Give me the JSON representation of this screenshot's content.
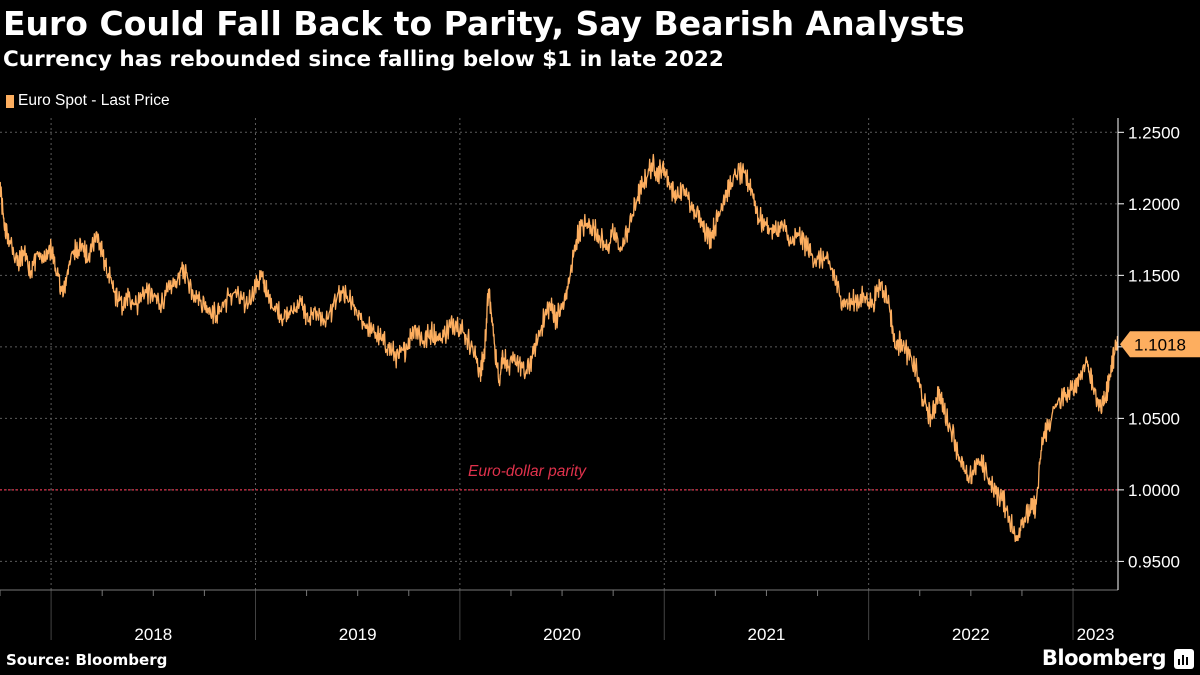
{
  "header": {
    "title": "Euro Could Fall Back to Parity, Say Bearish Analysts",
    "subtitle": "Currency has rebounded since falling below $1 in late 2022"
  },
  "footer": {
    "source": "Source: Bloomberg",
    "brand": "Bloomberg"
  },
  "colors": {
    "background": "#000000",
    "series": "#FDAE5F",
    "parity": "#E0324C",
    "grid": "#5C5C5C",
    "text": "#FFFFFF",
    "tag_text": "#000000"
  },
  "chart_data": {
    "type": "line",
    "title": "Euro Could Fall Back to Parity, Say Bearish Analysts",
    "subtitle": "Currency has rebounded since falling below $1 in late 2022",
    "xlabel": "",
    "ylabel": "",
    "ylim": [
      0.93,
      1.26
    ],
    "xlim": [
      2017.75,
      2023.22
    ],
    "yticks": [
      0.95,
      1.0,
      1.05,
      1.1,
      1.15,
      1.2,
      1.25
    ],
    "ytick_labels": [
      "0.9500",
      "1.0000",
      "1.0500",
      "1.1000",
      "1.1500",
      "1.2000",
      "1.2500"
    ],
    "year_labels": [
      {
        "label": "2018",
        "start": 2018.0
      },
      {
        "label": "2019",
        "start": 2019.0
      },
      {
        "label": "2020",
        "start": 2020.0
      },
      {
        "label": "2021",
        "start": 2021.0
      },
      {
        "label": "2022",
        "start": 2022.0
      },
      {
        "label": "2023",
        "start": 2023.0
      }
    ],
    "legend": [
      "Euro Spot - Last Price"
    ],
    "last_value": {
      "value": 1.1018,
      "label": "1.1018"
    },
    "annotations": [
      {
        "text": "Euro-dollar parity",
        "y": 1.0
      }
    ],
    "grid": true,
    "series": [
      {
        "name": "Euro Spot - Last Price",
        "points": [
          [
            2017.75,
            1.212
          ],
          [
            2017.77,
            1.185
          ],
          [
            2017.8,
            1.172
          ],
          [
            2017.84,
            1.158
          ],
          [
            2017.87,
            1.168
          ],
          [
            2017.9,
            1.152
          ],
          [
            2017.93,
            1.165
          ],
          [
            2017.97,
            1.16
          ],
          [
            2018.0,
            1.17
          ],
          [
            2018.03,
            1.15
          ],
          [
            2018.06,
            1.136
          ],
          [
            2018.09,
            1.16
          ],
          [
            2018.12,
            1.168
          ],
          [
            2018.15,
            1.172
          ],
          [
            2018.18,
            1.16
          ],
          [
            2018.22,
            1.18
          ],
          [
            2018.25,
            1.165
          ],
          [
            2018.28,
            1.15
          ],
          [
            2018.31,
            1.138
          ],
          [
            2018.35,
            1.128
          ],
          [
            2018.38,
            1.135
          ],
          [
            2018.42,
            1.13
          ],
          [
            2018.46,
            1.14
          ],
          [
            2018.5,
            1.135
          ],
          [
            2018.54,
            1.13
          ],
          [
            2018.58,
            1.14
          ],
          [
            2018.62,
            1.148
          ],
          [
            2018.65,
            1.155
          ],
          [
            2018.69,
            1.14
          ],
          [
            2018.73,
            1.132
          ],
          [
            2018.77,
            1.127
          ],
          [
            2018.81,
            1.122
          ],
          [
            2018.85,
            1.132
          ],
          [
            2018.9,
            1.138
          ],
          [
            2018.95,
            1.128
          ],
          [
            2019.0,
            1.142
          ],
          [
            2019.03,
            1.15
          ],
          [
            2019.06,
            1.135
          ],
          [
            2019.1,
            1.127
          ],
          [
            2019.14,
            1.12
          ],
          [
            2019.18,
            1.125
          ],
          [
            2019.22,
            1.132
          ],
          [
            2019.26,
            1.118
          ],
          [
            2019.3,
            1.125
          ],
          [
            2019.34,
            1.117
          ],
          [
            2019.38,
            1.128
          ],
          [
            2019.42,
            1.138
          ],
          [
            2019.46,
            1.132
          ],
          [
            2019.5,
            1.122
          ],
          [
            2019.54,
            1.115
          ],
          [
            2019.58,
            1.11
          ],
          [
            2019.62,
            1.105
          ],
          [
            2019.66,
            1.098
          ],
          [
            2019.7,
            1.092
          ],
          [
            2019.74,
            1.1
          ],
          [
            2019.78,
            1.115
          ],
          [
            2019.82,
            1.104
          ],
          [
            2019.86,
            1.11
          ],
          [
            2019.9,
            1.105
          ],
          [
            2019.94,
            1.112
          ],
          [
            2019.98,
            1.118
          ],
          [
            2020.02,
            1.11
          ],
          [
            2020.06,
            1.1
          ],
          [
            2020.1,
            1.082
          ],
          [
            2020.12,
            1.095
          ],
          [
            2020.14,
            1.14
          ],
          [
            2020.16,
            1.115
          ],
          [
            2020.19,
            1.075
          ],
          [
            2020.21,
            1.095
          ],
          [
            2020.24,
            1.085
          ],
          [
            2020.28,
            1.092
          ],
          [
            2020.32,
            1.08
          ],
          [
            2020.36,
            1.095
          ],
          [
            2020.4,
            1.115
          ],
          [
            2020.44,
            1.13
          ],
          [
            2020.47,
            1.12
          ],
          [
            2020.51,
            1.13
          ],
          [
            2020.54,
            1.15
          ],
          [
            2020.57,
            1.175
          ],
          [
            2020.6,
            1.185
          ],
          [
            2020.64,
            1.185
          ],
          [
            2020.68,
            1.178
          ],
          [
            2020.72,
            1.168
          ],
          [
            2020.75,
            1.18
          ],
          [
            2020.79,
            1.168
          ],
          [
            2020.83,
            1.185
          ],
          [
            2020.87,
            1.205
          ],
          [
            2020.9,
            1.215
          ],
          [
            2020.94,
            1.228
          ],
          [
            2020.97,
            1.222
          ],
          [
            2021.0,
            1.225
          ],
          [
            2021.03,
            1.212
          ],
          [
            2021.06,
            1.205
          ],
          [
            2021.1,
            1.21
          ],
          [
            2021.14,
            1.195
          ],
          [
            2021.18,
            1.19
          ],
          [
            2021.22,
            1.175
          ],
          [
            2021.25,
            1.185
          ],
          [
            2021.28,
            1.2
          ],
          [
            2021.32,
            1.212
          ],
          [
            2021.36,
            1.222
          ],
          [
            2021.4,
            1.218
          ],
          [
            2021.43,
            1.21
          ],
          [
            2021.46,
            1.19
          ],
          [
            2021.5,
            1.185
          ],
          [
            2021.54,
            1.18
          ],
          [
            2021.58,
            1.185
          ],
          [
            2021.62,
            1.172
          ],
          [
            2021.66,
            1.178
          ],
          [
            2021.7,
            1.17
          ],
          [
            2021.74,
            1.16
          ],
          [
            2021.78,
            1.162
          ],
          [
            2021.82,
            1.155
          ],
          [
            2021.86,
            1.135
          ],
          [
            2021.9,
            1.13
          ],
          [
            2021.94,
            1.132
          ],
          [
            2021.98,
            1.135
          ],
          [
            2022.02,
            1.13
          ],
          [
            2022.06,
            1.145
          ],
          [
            2022.1,
            1.13
          ],
          [
            2022.13,
            1.1
          ],
          [
            2022.16,
            1.105
          ],
          [
            2022.19,
            1.095
          ],
          [
            2022.23,
            1.085
          ],
          [
            2022.27,
            1.06
          ],
          [
            2022.31,
            1.05
          ],
          [
            2022.34,
            1.07
          ],
          [
            2022.37,
            1.055
          ],
          [
            2022.41,
            1.04
          ],
          [
            2022.45,
            1.02
          ],
          [
            2022.49,
            1.005
          ],
          [
            2022.53,
            1.02
          ],
          [
            2022.57,
            1.015
          ],
          [
            2022.61,
            1.0
          ],
          [
            2022.65,
            0.995
          ],
          [
            2022.68,
            0.985
          ],
          [
            2022.72,
            0.965
          ],
          [
            2022.75,
            0.978
          ],
          [
            2022.79,
            0.985
          ],
          [
            2022.82,
            0.99
          ],
          [
            2022.85,
            1.035
          ],
          [
            2022.88,
            1.045
          ],
          [
            2022.92,
            1.06
          ],
          [
            2022.96,
            1.065
          ],
          [
            2023.0,
            1.07
          ],
          [
            2023.03,
            1.08
          ],
          [
            2023.07,
            1.09
          ],
          [
            2023.1,
            1.07
          ],
          [
            2023.13,
            1.058
          ],
          [
            2023.16,
            1.065
          ],
          [
            2023.18,
            1.08
          ],
          [
            2023.2,
            1.095
          ],
          [
            2023.22,
            1.1018
          ]
        ]
      }
    ]
  }
}
